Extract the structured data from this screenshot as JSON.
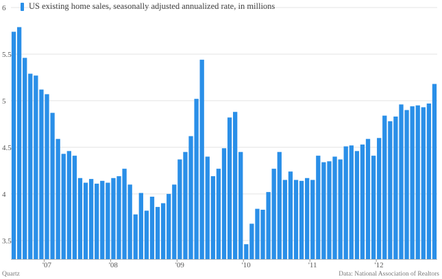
{
  "chart_data": {
    "type": "bar",
    "title": "US existing home sales, seasonally adjusted annualized rate, in millions",
    "series": [
      {
        "name": "US existing home sales, seasonally adjusted annualized rate, in millions",
        "color": "#2a8fe8",
        "values": [
          5.74,
          5.79,
          5.46,
          5.29,
          5.27,
          5.12,
          5.07,
          4.87,
          4.59,
          4.43,
          4.46,
          4.41,
          4.17,
          4.12,
          4.16,
          4.11,
          4.14,
          4.12,
          4.17,
          4.19,
          4.27,
          4.1,
          3.78,
          4.01,
          3.82,
          3.97,
          3.86,
          3.9,
          4.0,
          4.1,
          4.37,
          4.45,
          4.62,
          5.02,
          5.44,
          4.4,
          4.19,
          4.27,
          4.49,
          4.82,
          4.88,
          4.45,
          3.46,
          3.68,
          3.84,
          3.83,
          4.02,
          4.27,
          4.45,
          4.15,
          4.24,
          4.15,
          4.14,
          4.17,
          4.15,
          4.41,
          4.34,
          4.35,
          4.4,
          4.37,
          4.51,
          4.52,
          4.46,
          4.53,
          4.59,
          4.41,
          4.6,
          4.84,
          4.78,
          4.83,
          4.96,
          4.9,
          4.94,
          4.95,
          4.93,
          4.97,
          5.18
        ]
      }
    ],
    "ylim": [
      3.3,
      6.0
    ],
    "yticks": [
      3.5,
      4,
      4.5,
      5,
      5.5,
      6
    ],
    "ytick_labels": [
      "3.5",
      "4",
      "4.5",
      "5",
      "5.5",
      "6"
    ],
    "xticks": [
      {
        "label": "'07",
        "index": 5.5
      },
      {
        "label": "'08",
        "index": 17.5
      },
      {
        "label": "'09",
        "index": 29.5
      },
      {
        "label": "'10",
        "index": 41.5
      },
      {
        "label": "'11",
        "index": 53.5
      },
      {
        "label": "'12",
        "index": 65.5
      }
    ],
    "grid": true,
    "legend": "top-left"
  },
  "footer": {
    "brand": "Quartz",
    "source": "Data: National Association of Realtors"
  }
}
